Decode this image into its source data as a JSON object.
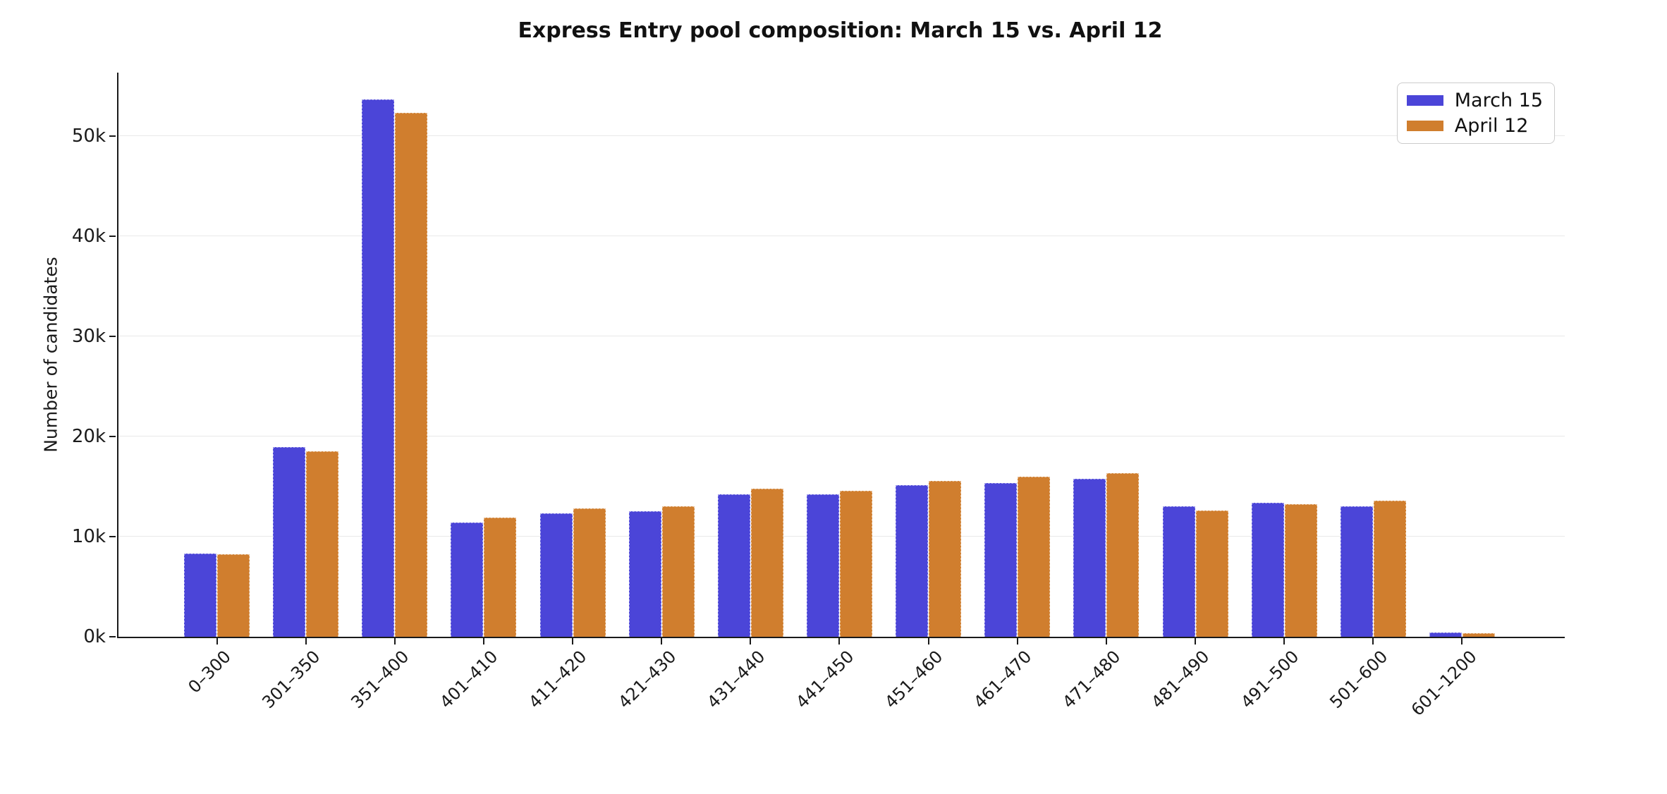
{
  "chart_data": {
    "type": "bar",
    "title": "Express Entry pool composition: March 15 vs. April 12",
    "xlabel": "",
    "ylabel": "Number of candidates",
    "categories": [
      "0–300",
      "301–350",
      "351–400",
      "401–410",
      "411–420",
      "421–430",
      "431–440",
      "441–450",
      "451–460",
      "461–470",
      "471–480",
      "481–490",
      "491–500",
      "501–600",
      "601–1200"
    ],
    "series": [
      {
        "name": "March 15",
        "color": "#4b45d8",
        "values": [
          8300,
          18900,
          53600,
          11400,
          12300,
          12500,
          14250,
          14250,
          15150,
          15350,
          15800,
          13000,
          13400,
          13050,
          400
        ]
      },
      {
        "name": "April 12",
        "color": "#d07e2e",
        "values": [
          8200,
          18500,
          52300,
          11900,
          12800,
          13000,
          14750,
          14600,
          15550,
          16000,
          16300,
          12600,
          13200,
          13600,
          350
        ]
      }
    ],
    "ylim": [
      0,
      56300
    ],
    "yticks": [
      {
        "value": 0,
        "label": "0k"
      },
      {
        "value": 10000,
        "label": "10k"
      },
      {
        "value": 20000,
        "label": "20k"
      },
      {
        "value": 30000,
        "label": "30k"
      },
      {
        "value": 40000,
        "label": "40k"
      },
      {
        "value": 50000,
        "label": "50k"
      }
    ],
    "grid": true,
    "legend_position": "upper right"
  },
  "colors": {
    "march_15": "#4b45d8",
    "april_12": "#d07e2e",
    "gridline": "#e9e9e9",
    "axis": "#1a1a1a",
    "background": "#ffffff",
    "legend_border": "#cccccc"
  }
}
